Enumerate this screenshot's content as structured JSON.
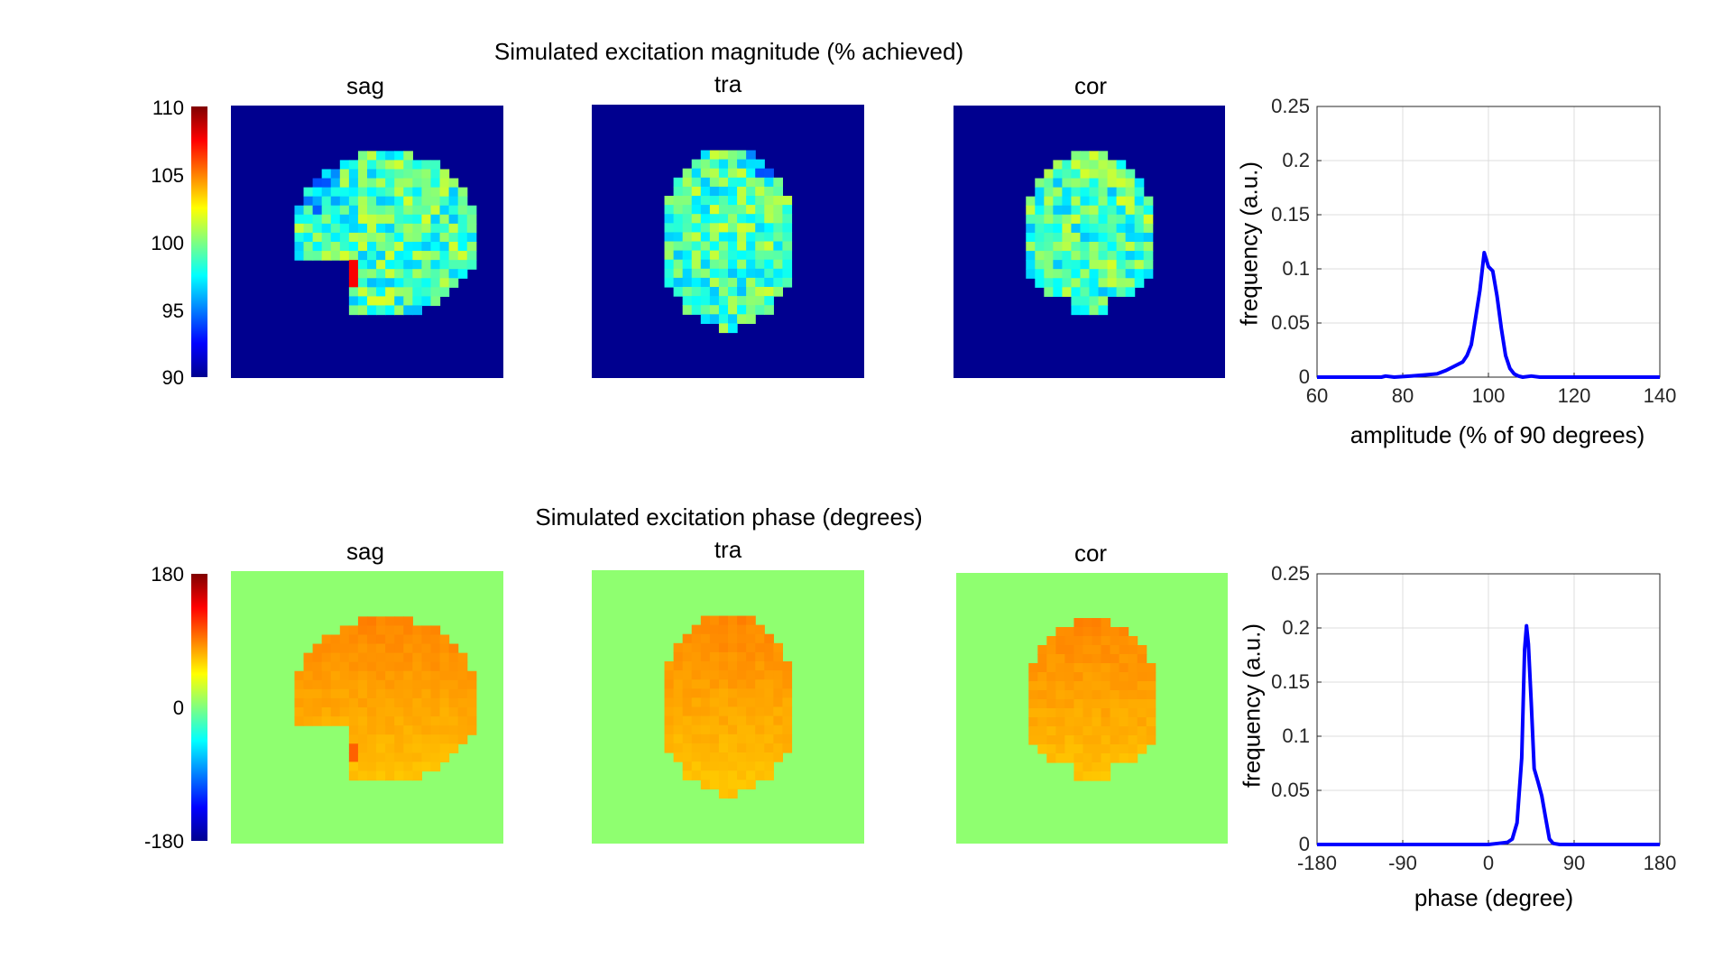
{
  "figure": {
    "row1_title": "Simulated excitation magnitude (% achieved)",
    "row2_title": "Simulated excitation phase (degrees)",
    "panel_titles": [
      "sag",
      "tra",
      "cor"
    ]
  },
  "colors": {
    "line": "#0000ff",
    "mag_background": "#00008f",
    "phase_background": "#8fff70",
    "grid": "#dcdcdc",
    "axis": "#262626"
  },
  "chart_data": [
    {
      "type": "heatmap",
      "row": "magnitude",
      "colormap": "jet",
      "colorbar": {
        "ticks": [
          "110",
          "105",
          "100",
          "95",
          "90"
        ],
        "range": [
          90,
          110
        ]
      },
      "panels": [
        "sag",
        "tra",
        "cor"
      ],
      "background_value": 90
    },
    {
      "type": "line",
      "row": "magnitude",
      "xlabel": "amplitude (% of 90 degrees)",
      "ylabel": "frequency (a.u.)",
      "xlim": [
        60,
        140
      ],
      "ylim": [
        0,
        0.25
      ],
      "xticks": [
        "60",
        "80",
        "100",
        "120",
        "140"
      ],
      "yticks": [
        "0",
        "0.05",
        "0.1",
        "0.15",
        "0.2",
        "0.25"
      ],
      "grid": true,
      "x": [
        60,
        75,
        76,
        78,
        82,
        85,
        88,
        90,
        92,
        94,
        95,
        96,
        97,
        98,
        99,
        100,
        101,
        102,
        103,
        104,
        105,
        106,
        107,
        108,
        110,
        112,
        140
      ],
      "y": [
        0,
        0,
        0.001,
        0,
        0.001,
        0.002,
        0.003,
        0.006,
        0.01,
        0.014,
        0.02,
        0.03,
        0.055,
        0.08,
        0.115,
        0.102,
        0.098,
        0.075,
        0.045,
        0.02,
        0.008,
        0.003,
        0.001,
        0,
        0.001,
        0,
        0
      ]
    },
    {
      "type": "heatmap",
      "row": "phase",
      "colormap": "jet",
      "colorbar": {
        "ticks": [
          "180",
          "0",
          "-180"
        ],
        "range": [
          -180,
          180
        ]
      },
      "panels": [
        "sag",
        "tra",
        "cor"
      ],
      "background_value": 0
    },
    {
      "type": "line",
      "row": "phase",
      "xlabel": "phase (degree)",
      "ylabel": "frequency (a.u.)",
      "xlim": [
        -180,
        180
      ],
      "ylim": [
        0,
        0.25
      ],
      "xticks": [
        "-180",
        "-90",
        "0",
        "90",
        "180"
      ],
      "yticks": [
        "0",
        "0.05",
        "0.1",
        "0.15",
        "0.2",
        "0.25"
      ],
      "grid": true,
      "x": [
        -180,
        0,
        10,
        20,
        25,
        30,
        35,
        38,
        40,
        42,
        45,
        48,
        52,
        56,
        60,
        64,
        68,
        75,
        180
      ],
      "y": [
        0,
        0,
        0.001,
        0.002,
        0.005,
        0.02,
        0.08,
        0.18,
        0.202,
        0.185,
        0.13,
        0.07,
        0.058,
        0.045,
        0.025,
        0.005,
        0.001,
        0,
        0
      ]
    }
  ]
}
